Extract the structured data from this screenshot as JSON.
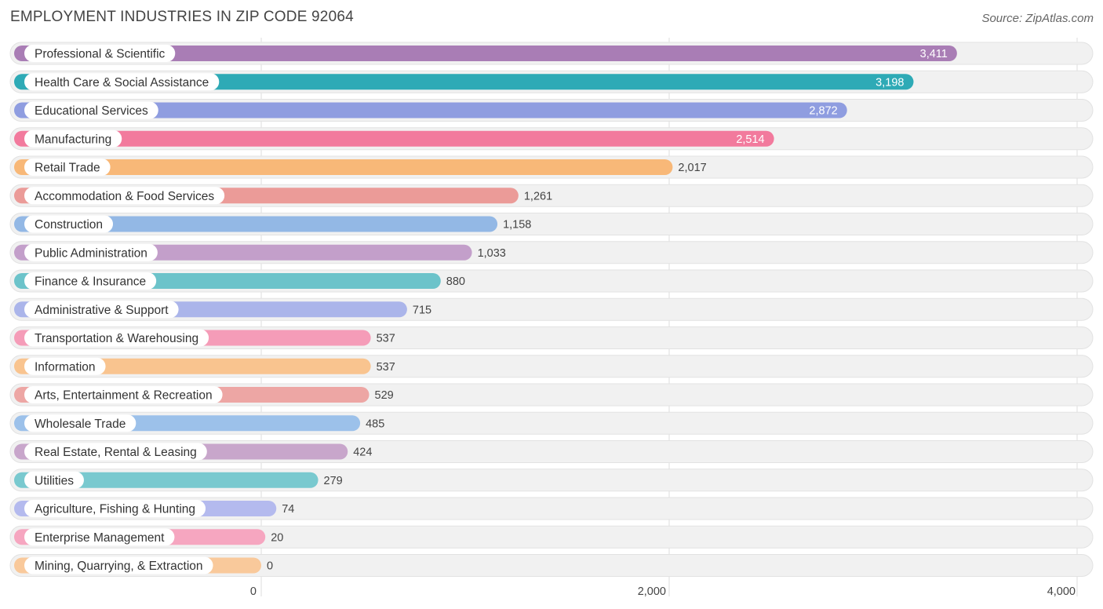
{
  "title": "EMPLOYMENT INDUSTRIES IN ZIP CODE 92064",
  "source": "Source: ZipAtlas.com",
  "chart_data": {
    "type": "bar",
    "orientation": "horizontal",
    "title": "EMPLOYMENT INDUSTRIES IN ZIP CODE 92064",
    "xlabel": "",
    "ylabel": "",
    "xlim": [
      0,
      4000
    ],
    "ticks": [
      0,
      2000,
      4000
    ],
    "tick_labels": [
      "0",
      "2,000",
      "4,000"
    ],
    "grid": true,
    "categories": [
      "Professional & Scientific",
      "Health Care & Social Assistance",
      "Educational Services",
      "Manufacturing",
      "Retail Trade",
      "Accommodation & Food Services",
      "Construction",
      "Public Administration",
      "Finance & Insurance",
      "Administrative & Support",
      "Transportation & Warehousing",
      "Information",
      "Arts, Entertainment & Recreation",
      "Wholesale Trade",
      "Real Estate, Rental & Leasing",
      "Utilities",
      "Agriculture, Fishing & Hunting",
      "Enterprise Management",
      "Mining, Quarrying, & Extraction"
    ],
    "values": [
      3411,
      3198,
      2872,
      2514,
      2017,
      1261,
      1158,
      1033,
      880,
      715,
      537,
      537,
      529,
      485,
      424,
      279,
      74,
      20,
      0
    ],
    "value_labels": [
      "3,411",
      "3,198",
      "2,872",
      "2,514",
      "2,017",
      "1,261",
      "1,158",
      "1,033",
      "880",
      "715",
      "537",
      "537",
      "529",
      "485",
      "424",
      "279",
      "74",
      "20",
      "0"
    ],
    "colors": [
      "#a97db5",
      "#2eaab6",
      "#8f9de0",
      "#f27a9d",
      "#f8b878",
      "#eb9b98",
      "#93b8e5",
      "#c39fca",
      "#6cc3ca",
      "#abb5ea",
      "#f59cb8",
      "#f9c48f",
      "#eda6a4",
      "#9cc1ea",
      "#c8a6cb",
      "#79c9cf",
      "#b4baee",
      "#f6a6c0",
      "#f9c99b"
    ]
  }
}
